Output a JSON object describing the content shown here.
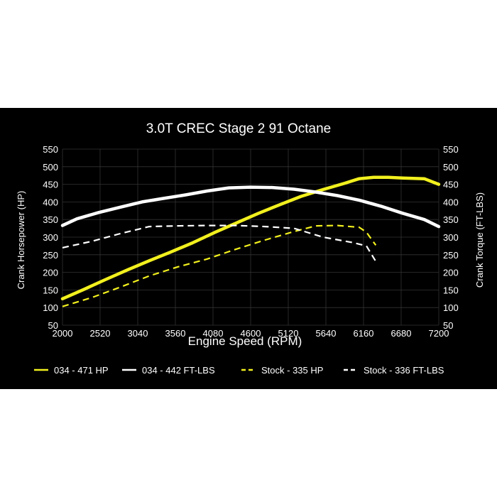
{
  "chart_data": {
    "type": "line",
    "title": "3.0T CREC Stage 2 91 Octane",
    "xlabel": "Engine Speed (RPM)",
    "ylabel_left": "Crank Horsepower (HP)",
    "ylabel_right": "Crank Torque (FT-LBS)",
    "xlim": [
      2000,
      7200
    ],
    "ylim": [
      50,
      550
    ],
    "x_ticks": [
      2000,
      2520,
      3040,
      3560,
      4080,
      4600,
      5120,
      5640,
      6160,
      6680,
      7200
    ],
    "y_ticks": [
      50,
      100,
      150,
      200,
      250,
      300,
      350,
      400,
      450,
      500,
      550
    ],
    "grid": true,
    "legend_position": "bottom",
    "colors": {
      "background": "#000000",
      "yellow": "#f2f01e",
      "white": "#ffffff",
      "grid": "#333333"
    },
    "series": [
      {
        "name": "034 - 471 HP",
        "color": "#f2f01e",
        "dashed": false,
        "x": [
          2000,
          2300,
          2600,
          2900,
          3200,
          3500,
          3800,
          4100,
          4400,
          4700,
          5000,
          5300,
          5600,
          5900,
          6100,
          6300,
          6500,
          6700,
          7000,
          7200
        ],
        "y": [
          125,
          152,
          180,
          207,
          233,
          258,
          284,
          313,
          340,
          367,
          392,
          416,
          435,
          453,
          466,
          470,
          470,
          468,
          466,
          450
        ]
      },
      {
        "name": "034 - 442 FT-LBS",
        "color": "#ffffff",
        "dashed": false,
        "x": [
          2000,
          2200,
          2500,
          2800,
          3100,
          3400,
          3700,
          4000,
          4300,
          4600,
          4900,
          5200,
          5500,
          5800,
          6100,
          6400,
          6700,
          7000,
          7200
        ],
        "y": [
          333,
          352,
          370,
          385,
          400,
          410,
          420,
          431,
          440,
          442,
          441,
          436,
          428,
          418,
          405,
          388,
          368,
          350,
          330
        ]
      },
      {
        "name": "Stock - 335 HP",
        "color": "#f2f01e",
        "dashed": true,
        "x": [
          2000,
          2400,
          2800,
          3200,
          3600,
          4000,
          4400,
          4800,
          5200,
          5500,
          5800,
          6100,
          6200,
          6330
        ],
        "y": [
          103,
          128,
          158,
          190,
          216,
          238,
          266,
          292,
          316,
          332,
          333,
          328,
          314,
          277
        ]
      },
      {
        "name": "Stock - 336 FT-LBS",
        "color": "#ffffff",
        "dashed": true,
        "x": [
          2000,
          2400,
          2800,
          3200,
          3600,
          4000,
          4400,
          4800,
          5200,
          5600,
          6000,
          6200,
          6330
        ],
        "y": [
          270,
          288,
          310,
          330,
          332,
          333,
          333,
          330,
          325,
          300,
          285,
          275,
          231
        ]
      }
    ]
  }
}
